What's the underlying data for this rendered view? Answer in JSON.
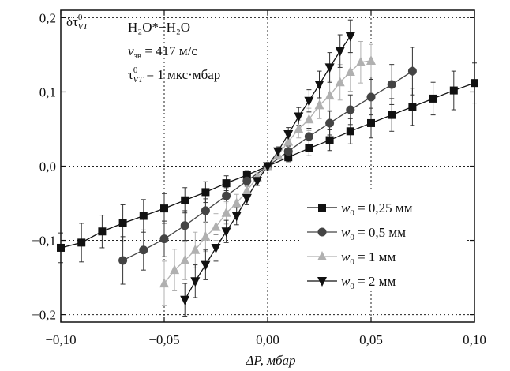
{
  "chart_data": {
    "type": "scatter",
    "title": "",
    "xlabel": "ΔP, мбар",
    "ylabel": "δτ⁰VT",
    "ylabel_main": "δτ",
    "ylabel_sup": "0",
    "ylabel_sub": "VT",
    "xlim": [
      -0.1,
      0.1
    ],
    "ylim": [
      -0.21,
      0.21
    ],
    "grid": "dotted lines at 0.1 steps",
    "legend_position": "center-right",
    "x_ticks": [
      {
        "value": -0.1,
        "label": "−0,10"
      },
      {
        "value": -0.05,
        "label": "−0,05"
      },
      {
        "value": 0.0,
        "label": "0,00"
      },
      {
        "value": 0.05,
        "label": "0,05"
      },
      {
        "value": 0.1,
        "label": "0,10"
      }
    ],
    "y_ticks": [
      {
        "value": 0.2,
        "label": "0,2"
      },
      {
        "value": 0.1,
        "label": "0,1"
      },
      {
        "value": 0.0,
        "label": "0,0"
      },
      {
        "value": -0.1,
        "label": "−0,1"
      },
      {
        "value": -0.2,
        "label": "−0,2"
      }
    ],
    "annotations": {
      "line1": "H₂O*−H₂O",
      "line2_var": "v",
      "line2_sub": "зв",
      "line2_rest": " = 417 м/с",
      "line3_var": "τ",
      "line3_sup": "0",
      "line3_sub": "VT",
      "line3_rest": " = 1 мкс·мбар"
    },
    "series": [
      {
        "name": "w₀ = 0,25 мм",
        "legend_var": "w",
        "legend_sub": "0",
        "legend_rest": " = 0,25 мм",
        "marker": "square",
        "color": "#111111",
        "x": [
          -0.1,
          -0.09,
          -0.08,
          -0.07,
          -0.06,
          -0.05,
          -0.04,
          -0.03,
          -0.02,
          -0.01,
          0.0,
          0.01,
          0.02,
          0.03,
          0.04,
          0.05,
          0.06,
          0.07,
          0.08,
          0.09,
          0.1
        ],
        "y": [
          -0.11,
          -0.103,
          -0.088,
          -0.077,
          -0.067,
          -0.057,
          -0.046,
          -0.035,
          -0.023,
          -0.012,
          0.0,
          0.012,
          0.024,
          0.035,
          0.047,
          0.058,
          0.069,
          0.08,
          0.091,
          0.102,
          0.112
        ],
        "err": [
          0.02,
          0.026,
          0.022,
          0.025,
          0.022,
          0.02,
          0.017,
          0.014,
          0.01,
          0.006,
          0.003,
          0.006,
          0.01,
          0.014,
          0.017,
          0.02,
          0.022,
          0.025,
          0.022,
          0.026,
          0.027
        ]
      },
      {
        "name": "w₀ = 0,5 мм",
        "legend_var": "w",
        "legend_sub": "0",
        "legend_rest": " = 0,5 мм",
        "marker": "circle",
        "color": "#444444",
        "x": [
          -0.07,
          -0.06,
          -0.05,
          -0.04,
          -0.03,
          -0.02,
          -0.01,
          0.0,
          0.01,
          0.02,
          0.03,
          0.04,
          0.05,
          0.06,
          0.07
        ],
        "y": [
          -0.127,
          -0.113,
          -0.098,
          -0.08,
          -0.06,
          -0.04,
          -0.02,
          0.0,
          0.02,
          0.04,
          0.058,
          0.076,
          0.093,
          0.11,
          0.128
        ],
        "err": [
          0.032,
          0.027,
          0.024,
          0.02,
          0.016,
          0.011,
          0.007,
          0.003,
          0.007,
          0.011,
          0.016,
          0.02,
          0.024,
          0.027,
          0.032
        ]
      },
      {
        "name": "w₀ = 1 мм",
        "legend_var": "w",
        "legend_sub": "0",
        "legend_rest": " = 1 мм",
        "marker": "triangle-up",
        "color": "#b0b0b0",
        "x": [
          -0.05,
          -0.045,
          -0.04,
          -0.035,
          -0.03,
          -0.025,
          -0.02,
          -0.015,
          -0.01,
          -0.005,
          0.0,
          0.005,
          0.01,
          0.015,
          0.02,
          0.025,
          0.03,
          0.035,
          0.04,
          0.045,
          0.05
        ],
        "y": [
          -0.158,
          -0.14,
          -0.127,
          -0.113,
          -0.095,
          -0.082,
          -0.063,
          -0.05,
          -0.033,
          -0.015,
          0.0,
          0.015,
          0.033,
          0.05,
          0.063,
          0.082,
          0.095,
          0.113,
          0.127,
          0.14,
          0.142
        ],
        "err": [
          0.03,
          0.028,
          0.026,
          0.024,
          0.02,
          0.018,
          0.015,
          0.012,
          0.009,
          0.006,
          0.004,
          0.006,
          0.009,
          0.012,
          0.015,
          0.018,
          0.02,
          0.024,
          0.026,
          0.028,
          0.022
        ]
      },
      {
        "name": "w₀ = 2 мм",
        "legend_var": "w",
        "legend_sub": "0",
        "legend_rest": " = 2 мм",
        "marker": "triangle-down",
        "color": "#111111",
        "x": [
          -0.04,
          -0.035,
          -0.03,
          -0.025,
          -0.02,
          -0.015,
          -0.01,
          -0.005,
          0.0,
          0.005,
          0.01,
          0.015,
          0.02,
          0.025,
          0.03,
          0.035,
          0.04
        ],
        "y": [
          -0.18,
          -0.155,
          -0.133,
          -0.11,
          -0.088,
          -0.067,
          -0.043,
          -0.02,
          0.0,
          0.02,
          0.043,
          0.067,
          0.088,
          0.11,
          0.133,
          0.155,
          0.175
        ],
        "err": [
          0.022,
          0.022,
          0.02,
          0.018,
          0.015,
          0.012,
          0.009,
          0.006,
          0.004,
          0.006,
          0.009,
          0.012,
          0.015,
          0.018,
          0.02,
          0.022,
          0.022
        ]
      }
    ]
  }
}
